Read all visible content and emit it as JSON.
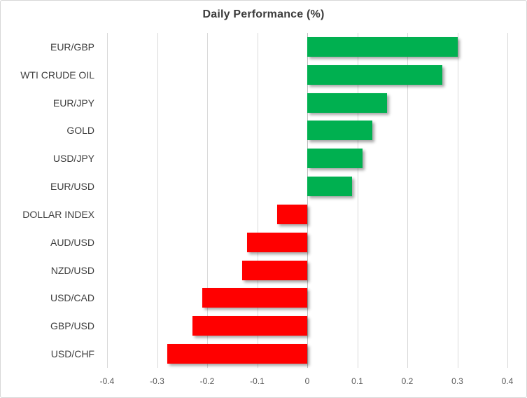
{
  "chart_data": {
    "type": "bar",
    "orientation": "horizontal",
    "title": "Daily Performance (%)",
    "categories": [
      "EUR/GBP",
      "WTI CRUDE OIL",
      "EUR/JPY",
      "GOLD",
      "USD/JPY",
      "EUR/USD",
      "DOLLAR INDEX",
      "AUD/USD",
      "NZD/USD",
      "USD/CAD",
      "GBP/USD",
      "USD/CHF"
    ],
    "values": [
      0.3,
      0.27,
      0.16,
      0.13,
      0.11,
      0.09,
      -0.06,
      -0.12,
      -0.13,
      -0.21,
      -0.23,
      -0.28
    ],
    "xlabel": "",
    "ylabel": "",
    "xlim": [
      -0.4,
      0.4
    ],
    "x_ticks": [
      -0.4,
      -0.3,
      -0.2,
      -0.1,
      0,
      0.1,
      0.2,
      0.3,
      0.4
    ],
    "x_tick_labels": [
      "-0.4",
      "-0.3",
      "-0.2",
      "-0.1",
      "0",
      "0.1",
      "0.2",
      "0.3",
      "0.4"
    ],
    "grid": true,
    "legend": "none",
    "colors": {
      "positive": "#00B050",
      "negative": "#FF0000",
      "gridline": "#d9d9d9",
      "zero_axis": "#bfbfbf",
      "title_text": "#3b3b3b",
      "category_text": "#404040",
      "tick_text": "#595959"
    }
  }
}
